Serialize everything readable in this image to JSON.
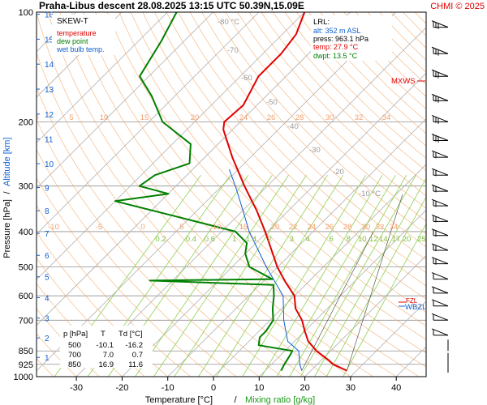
{
  "header": {
    "title": "Praha-Libus   descent   28.08.2025 13:15 UTC  50.39N,15.09E",
    "credit": "CHMI © 2025"
  },
  "legend": {
    "title": "SKEW-T",
    "items": [
      {
        "label": "temperature",
        "color": "#e00000"
      },
      {
        "label": "dew point",
        "color": "#008000"
      },
      {
        "label": "wet bulb temp.",
        "color": "#1060d0"
      }
    ]
  },
  "lrl": {
    "title": "LRL:",
    "alt": "alt: 352 m ASL",
    "press": "press: 963.1 hPa",
    "temp": "temp: 27.9 °C",
    "dwpt": "dwpt: 13.5 °C"
  },
  "levels_table": {
    "headers": [
      "p [hPa]",
      "T",
      "Td [°C]"
    ],
    "rows": [
      [
        "500",
        "-10.1",
        "-16.2"
      ],
      [
        "700",
        "7.0",
        "0.7"
      ],
      [
        "850",
        "16.9",
        "11.6"
      ]
    ]
  },
  "markers": {
    "mxws": "MXWS",
    "wbzl": "WBZL",
    "fzl": "FZL"
  },
  "axes": {
    "xlabel_temperature": "Temperature [°C]",
    "xlabel_separator": "/",
    "xlabel_mixing": "Mixing ratio [g/kg]",
    "ylabel_pressure": "Pressure [hPa]",
    "ylabel_separator": "/",
    "ylabel_altitude": "Altitude [km]",
    "x_ticks": [
      "-30",
      "-20",
      "-10",
      "0",
      "10",
      "20",
      "30",
      "40"
    ],
    "p_ticks": [
      "100",
      "200",
      "300",
      "400",
      "500",
      "600",
      "700",
      "850",
      "925",
      "1000"
    ],
    "alt_ticks": [
      "1",
      "2",
      "3",
      "4",
      "5",
      "6",
      "7",
      "8",
      "9",
      "10",
      "11",
      "12",
      "13",
      "14",
      "15",
      "16"
    ]
  },
  "colors": {
    "temperature": "#e00000",
    "dewpoint": "#008000",
    "wetbulb": "#1060d0",
    "dry_adiabat": "#f4a460",
    "mixing_ratio": "#90d050",
    "isotherm": "#b0b0b0",
    "isobar": "#909090"
  },
  "chart_data": {
    "type": "line",
    "title": "Praha-Libus   descent   28.08.2025 13:15 UTC  50.39N,15.09E",
    "xlabel": "Temperature [°C]",
    "ylabel": "Pressure [hPa]",
    "x_scale": "skew-T (temperature along skewed isotherms)",
    "y_scale": "log pressure",
    "xlim": [
      -35,
      45
    ],
    "ylim": [
      1000,
      100
    ],
    "grid": true,
    "isotherm_labels": [
      "-80 °C",
      "-70",
      "-60",
      "-50",
      "-40",
      "-30",
      "-20",
      "-10 °C"
    ],
    "isotherm_label_values": [
      -80,
      -70,
      -60,
      -50,
      -40,
      -30,
      -20,
      -10
    ],
    "theta_labels_top": [
      "0",
      "5",
      "10",
      "15",
      "20",
      "24",
      "26",
      "28",
      "30",
      "32",
      "34"
    ],
    "theta_labels_mid": [
      "-10",
      "-5",
      "0",
      "5",
      "10",
      "15",
      "20",
      "22",
      "24",
      "26",
      "28",
      "30",
      "32",
      "34"
    ],
    "mixing_ratio_labels": [
      "0.2",
      "0.4",
      "0.6",
      "1",
      "1.4",
      "2",
      "3",
      "4",
      "6",
      "8",
      "10",
      "12",
      "14",
      "17",
      "20",
      "25"
    ],
    "mixing_ratio_values": [
      0.2,
      0.4,
      0.6,
      1,
      1.4,
      2,
      3,
      4,
      6,
      8,
      10,
      12,
      14,
      17,
      20,
      25
    ],
    "series": [
      {
        "name": "temperature",
        "points": [
          {
            "p": 963,
            "t": 27.9
          },
          {
            "p": 925,
            "t": 23.5
          },
          {
            "p": 900,
            "t": 21.5
          },
          {
            "p": 850,
            "t": 16.9
          },
          {
            "p": 800,
            "t": 13.0
          },
          {
            "p": 750,
            "t": 10.0
          },
          {
            "p": 700,
            "t": 7.0
          },
          {
            "p": 650,
            "t": 3.0
          },
          {
            "p": 600,
            "t": 0.0
          },
          {
            "p": 550,
            "t": -5.0
          },
          {
            "p": 500,
            "t": -10.1
          },
          {
            "p": 450,
            "t": -15.0
          },
          {
            "p": 400,
            "t": -20.5
          },
          {
            "p": 350,
            "t": -27.0
          },
          {
            "p": 300,
            "t": -35.0
          },
          {
            "p": 250,
            "t": -44.0
          },
          {
            "p": 210,
            "t": -52.0
          },
          {
            "p": 200,
            "t": -53.5
          },
          {
            "p": 180,
            "t": -53.0
          },
          {
            "p": 150,
            "t": -56.0
          },
          {
            "p": 130,
            "t": -56.0
          },
          {
            "p": 115,
            "t": -57.0
          },
          {
            "p": 100,
            "t": -60.0
          }
        ]
      },
      {
        "name": "dew point",
        "points": [
          {
            "p": 963,
            "t": 13.5
          },
          {
            "p": 925,
            "t": 12.8
          },
          {
            "p": 870,
            "t": 12.0
          },
          {
            "p": 850,
            "t": 11.6
          },
          {
            "p": 820,
            "t": 3.0
          },
          {
            "p": 780,
            "t": 1.5
          },
          {
            "p": 750,
            "t": 1.5
          },
          {
            "p": 700,
            "t": 0.7
          },
          {
            "p": 650,
            "t": -2.0
          },
          {
            "p": 600,
            "t": -4.5
          },
          {
            "p": 560,
            "t": -7.0
          },
          {
            "p": 545,
            "t": -35.0
          },
          {
            "p": 540,
            "t": -8.5
          },
          {
            "p": 500,
            "t": -16.2
          },
          {
            "p": 460,
            "t": -20.0
          },
          {
            "p": 430,
            "t": -22.0
          },
          {
            "p": 400,
            "t": -27.0
          },
          {
            "p": 360,
            "t": -45.0
          },
          {
            "p": 330,
            "t": -60.0
          },
          {
            "p": 315,
            "t": -50.0
          },
          {
            "p": 300,
            "t": -58.0
          },
          {
            "p": 280,
            "t": -57.0
          },
          {
            "p": 260,
            "t": -52.0
          },
          {
            "p": 230,
            "t": -56.0
          },
          {
            "p": 200,
            "t": -67.0
          },
          {
            "p": 170,
            "t": -75.0
          },
          {
            "p": 150,
            "t": -82.0
          },
          {
            "p": 120,
            "t": -85.0
          },
          {
            "p": 100,
            "t": -88.0
          }
        ]
      },
      {
        "name": "wet bulb temp.",
        "points": [
          {
            "p": 963,
            "t": 18.0
          },
          {
            "p": 925,
            "t": 16.2
          },
          {
            "p": 850,
            "t": 13.0
          },
          {
            "p": 800,
            "t": 8.5
          },
          {
            "p": 700,
            "t": 3.0
          },
          {
            "p": 600,
            "t": -2.5
          },
          {
            "p": 500,
            "t": -12.5
          },
          {
            "p": 400,
            "t": -24.0
          },
          {
            "p": 350,
            "t": -30.0
          },
          {
            "p": 300,
            "t": -37.0
          },
          {
            "p": 270,
            "t": -42.0
          }
        ]
      }
    ],
    "annotations": [
      "MXWS",
      "FZL",
      "WBZL"
    ]
  }
}
